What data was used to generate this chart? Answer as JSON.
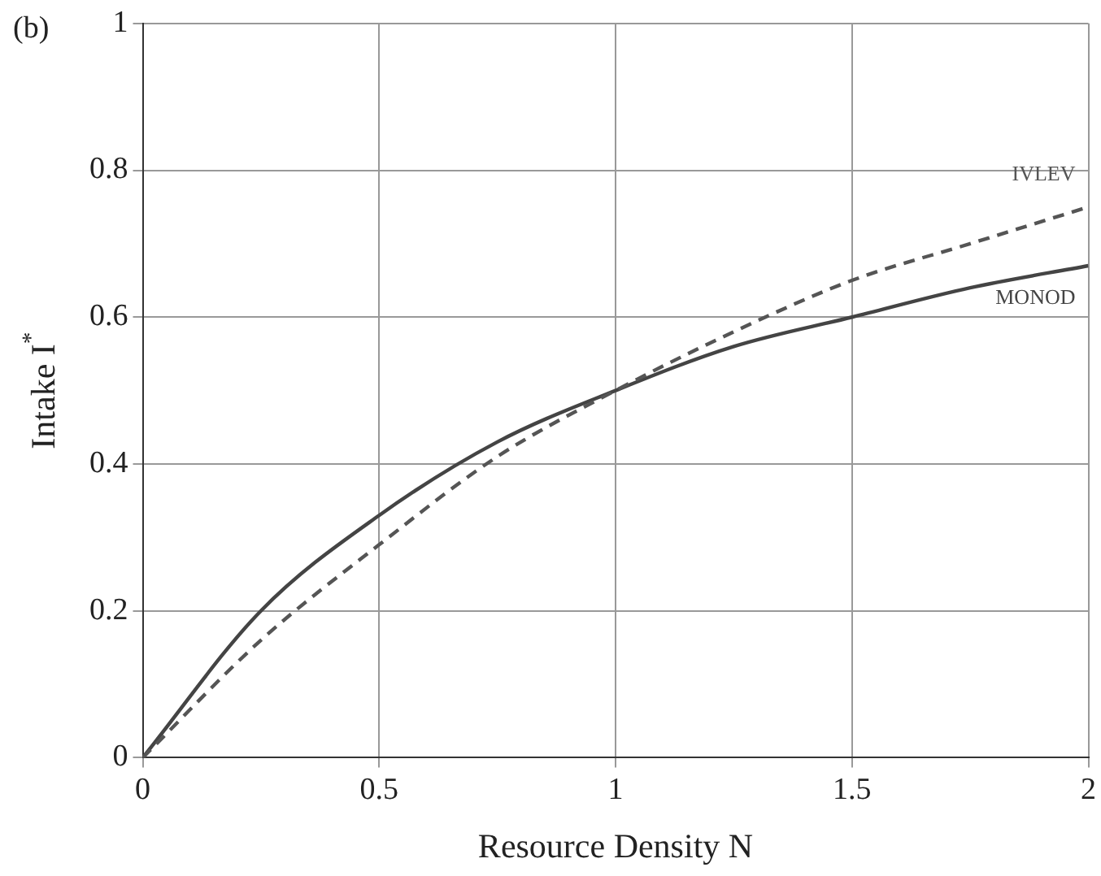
{
  "chart_data": {
    "type": "line",
    "xlabel": "Resource Density N",
    "ylabel": "Intake I$^{*}$",
    "annotations": [
      "(b)"
    ],
    "xlim": [
      0,
      2
    ],
    "xticks": [
      0,
      0.5,
      1,
      1.5,
      2
    ],
    "ylim": [
      0,
      1
    ],
    "yticks": [
      0,
      0.2,
      0.4,
      0.6,
      0.8,
      1
    ],
    "grid": true,
    "legend": false,
    "marker": "none",
    "series": [
      {
        "name": "IVLEV",
        "color": "#555555",
        "line_style": "dashed",
        "x": [
          0,
          0.25,
          0.5,
          0.75,
          1,
          1.25,
          1.5,
          1.75,
          2
        ],
        "values": [
          0,
          0.16,
          0.29,
          0.41,
          0.5,
          0.58,
          0.65,
          0.7,
          0.75
        ]
      },
      {
        "name": "MONOD",
        "color": "#444444",
        "line_style": "solid",
        "x": [
          0,
          0.25,
          0.5,
          0.75,
          1,
          1.25,
          1.5,
          1.75,
          2
        ],
        "values": [
          0,
          0.2,
          0.33,
          0.43,
          0.5,
          0.56,
          0.6,
          0.64,
          0.67
        ]
      }
    ]
  }
}
